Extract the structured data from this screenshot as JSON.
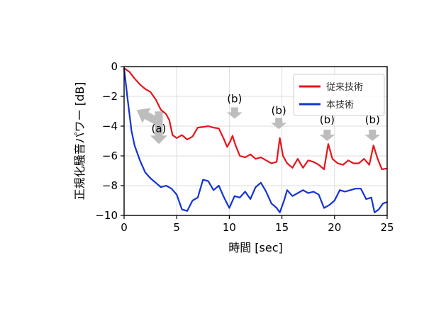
{
  "chart_data": {
    "type": "line",
    "xlabel": "時間 [sec]",
    "ylabel": "正規化騒音パワー [dB]",
    "xlim": [
      0,
      25
    ],
    "ylim": [
      -10,
      0
    ],
    "xticks": [
      0,
      5,
      10,
      15,
      20,
      25
    ],
    "yticks": [
      0,
      -2,
      -4,
      -6,
      -8,
      -10
    ],
    "xtick_labels": [
      "0",
      "5",
      "10",
      "15",
      "20",
      "25"
    ],
    "ytick_labels": [
      "0",
      "−2",
      "−4",
      "−6",
      "−8",
      "−10"
    ],
    "grid": true,
    "legend_position": "top-right",
    "series": [
      {
        "name": "従来技術",
        "color": "#e8141c",
        "points": [
          [
            0,
            -0.1
          ],
          [
            0.5,
            -0.35
          ],
          [
            1,
            -0.8
          ],
          [
            1.5,
            -1.2
          ],
          [
            2,
            -1.5
          ],
          [
            2.5,
            -1.7
          ],
          [
            3,
            -2.2
          ],
          [
            3.5,
            -2.9
          ],
          [
            4,
            -3.2
          ],
          [
            4.3,
            -3.6
          ],
          [
            4.6,
            -4.6
          ],
          [
            5,
            -4.8
          ],
          [
            5.5,
            -4.6
          ],
          [
            6,
            -4.9
          ],
          [
            6.5,
            -4.7
          ],
          [
            7,
            -4.1
          ],
          [
            7.5,
            -4.05
          ],
          [
            8,
            -4.0
          ],
          [
            8.5,
            -4.1
          ],
          [
            9,
            -4.15
          ],
          [
            9.5,
            -4.9
          ],
          [
            9.8,
            -5.4
          ],
          [
            10.1,
            -5.0
          ],
          [
            10.3,
            -4.65
          ],
          [
            10.6,
            -5.3
          ],
          [
            11,
            -6.0
          ],
          [
            11.5,
            -6.1
          ],
          [
            12,
            -5.9
          ],
          [
            12.5,
            -6.2
          ],
          [
            13,
            -6.1
          ],
          [
            13.5,
            -6.3
          ],
          [
            14,
            -6.5
          ],
          [
            14.5,
            -6.4
          ],
          [
            14.8,
            -4.8
          ],
          [
            15.1,
            -6.0
          ],
          [
            15.5,
            -6.5
          ],
          [
            16,
            -6.8
          ],
          [
            16.5,
            -6.2
          ],
          [
            17,
            -6.8
          ],
          [
            17.5,
            -6.3
          ],
          [
            18,
            -6.4
          ],
          [
            18.5,
            -6.6
          ],
          [
            19,
            -6.9
          ],
          [
            19.4,
            -5.2
          ],
          [
            19.8,
            -6.2
          ],
          [
            20.3,
            -6.5
          ],
          [
            20.8,
            -6.6
          ],
          [
            21.3,
            -6.3
          ],
          [
            21.8,
            -6.5
          ],
          [
            22.3,
            -6.5
          ],
          [
            22.8,
            -6.2
          ],
          [
            23.3,
            -6.6
          ],
          [
            23.7,
            -5.3
          ],
          [
            24.1,
            -6.2
          ],
          [
            24.5,
            -6.9
          ],
          [
            25,
            -6.85
          ]
        ]
      },
      {
        "name": "本技術",
        "color": "#1433d4",
        "points": [
          [
            0,
            -0.1
          ],
          [
            0.3,
            -2.0
          ],
          [
            0.7,
            -4.3
          ],
          [
            1,
            -5.3
          ],
          [
            1.5,
            -6.3
          ],
          [
            2,
            -7.1
          ],
          [
            2.5,
            -7.5
          ],
          [
            3,
            -7.8
          ],
          [
            3.5,
            -8.1
          ],
          [
            4,
            -8.0
          ],
          [
            4.5,
            -8.2
          ],
          [
            5,
            -8.6
          ],
          [
            5.5,
            -9.6
          ],
          [
            6,
            -9.7
          ],
          [
            6.5,
            -9.0
          ],
          [
            7,
            -8.8
          ],
          [
            7.5,
            -7.6
          ],
          [
            8,
            -7.7
          ],
          [
            8.5,
            -8.3
          ],
          [
            9,
            -8.0
          ],
          [
            9.5,
            -8.8
          ],
          [
            10,
            -9.5
          ],
          [
            10.5,
            -8.7
          ],
          [
            11,
            -8.8
          ],
          [
            11.5,
            -8.4
          ],
          [
            12,
            -8.9
          ],
          [
            12.5,
            -8.1
          ],
          [
            13,
            -7.8
          ],
          [
            13.5,
            -8.4
          ],
          [
            14,
            -9.2
          ],
          [
            14.5,
            -9.5
          ],
          [
            14.8,
            -9.8
          ],
          [
            15.2,
            -9.0
          ],
          [
            15.5,
            -8.3
          ],
          [
            16,
            -8.7
          ],
          [
            16.5,
            -8.5
          ],
          [
            17,
            -8.3
          ],
          [
            17.5,
            -8.5
          ],
          [
            18,
            -8.4
          ],
          [
            18.5,
            -8.6
          ],
          [
            19,
            -9.5
          ],
          [
            19.5,
            -9.3
          ],
          [
            20,
            -9.0
          ],
          [
            20.5,
            -8.3
          ],
          [
            21,
            -8.4
          ],
          [
            21.5,
            -8.3
          ],
          [
            22,
            -8.2
          ],
          [
            22.5,
            -8.2
          ],
          [
            23,
            -8.9
          ],
          [
            23.5,
            -8.8
          ],
          [
            23.8,
            -9.8
          ],
          [
            24.2,
            -9.6
          ],
          [
            24.6,
            -9.2
          ],
          [
            25,
            -9.1
          ]
        ]
      }
    ],
    "annotations": [
      {
        "label": "(a)",
        "x": 3.3,
        "y": -4.4
      },
      {
        "label": "(b)",
        "x": 10.5,
        "y": -2.4
      },
      {
        "label": "(b)",
        "x": 14.7,
        "y": -3.2
      },
      {
        "label": "(b)",
        "x": 19.3,
        "y": -3.8
      },
      {
        "label": "(b)",
        "x": 23.6,
        "y": -3.8
      }
    ],
    "arrows": [
      {
        "direction": "up-left",
        "x": 2.0,
        "y": -3.3
      },
      {
        "direction": "down",
        "x": 3.3,
        "y": -5.2
      },
      {
        "direction": "down",
        "x": 10.5,
        "y": -3.5
      },
      {
        "direction": "down",
        "x": 14.7,
        "y": -4.2
      },
      {
        "direction": "down",
        "x": 19.3,
        "y": -5.0
      },
      {
        "direction": "down",
        "x": 23.6,
        "y": -5.0
      }
    ],
    "arrow_color": "#bdbdbd"
  }
}
